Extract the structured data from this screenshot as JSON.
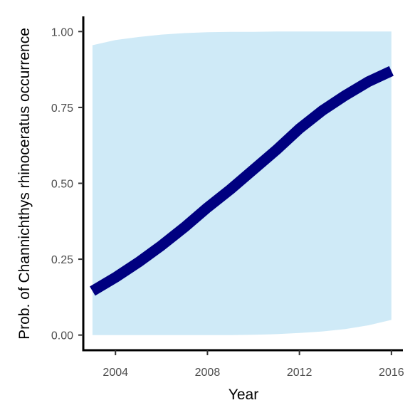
{
  "chart_data": {
    "type": "line",
    "title": "",
    "xlabel": "Year",
    "ylabel": "Prob. of  Channichthys rhinoceratus  occurrence",
    "xlim": [
      2002.6,
      2016.5
    ],
    "ylim": [
      -0.05,
      1.05
    ],
    "x_ticks": [
      2004,
      2008,
      2012,
      2016
    ],
    "y_ticks": [
      0.0,
      0.25,
      0.5,
      0.75,
      1.0
    ],
    "x_tick_labels": [
      "2004",
      "2008",
      "2012",
      "2016"
    ],
    "y_tick_labels": [
      "0.00",
      "0.25",
      "0.50",
      "0.75",
      "1.00"
    ],
    "grid": false,
    "legend": "none",
    "line_color": "#000080",
    "band_color": "#cfeaf7",
    "series": [
      {
        "x": [
          2003,
          2004,
          2005,
          2006,
          2007,
          2008,
          2009,
          2010,
          2011,
          2012,
          2013,
          2014,
          2015,
          2016
        ],
        "y": [
          0.145,
          0.19,
          0.24,
          0.295,
          0.355,
          0.42,
          0.48,
          0.545,
          0.61,
          0.68,
          0.74,
          0.79,
          0.835,
          0.87
        ],
        "lower": [
          0.0,
          0.0,
          0.0,
          0.0,
          0.0,
          0.0,
          0.0,
          0.001,
          0.003,
          0.007,
          0.012,
          0.02,
          0.032,
          0.05
        ],
        "upper": [
          0.955,
          0.972,
          0.982,
          0.99,
          0.995,
          0.998,
          0.999,
          0.999,
          1.0,
          1.0,
          1.0,
          1.0,
          1.0,
          1.0
        ]
      }
    ]
  }
}
